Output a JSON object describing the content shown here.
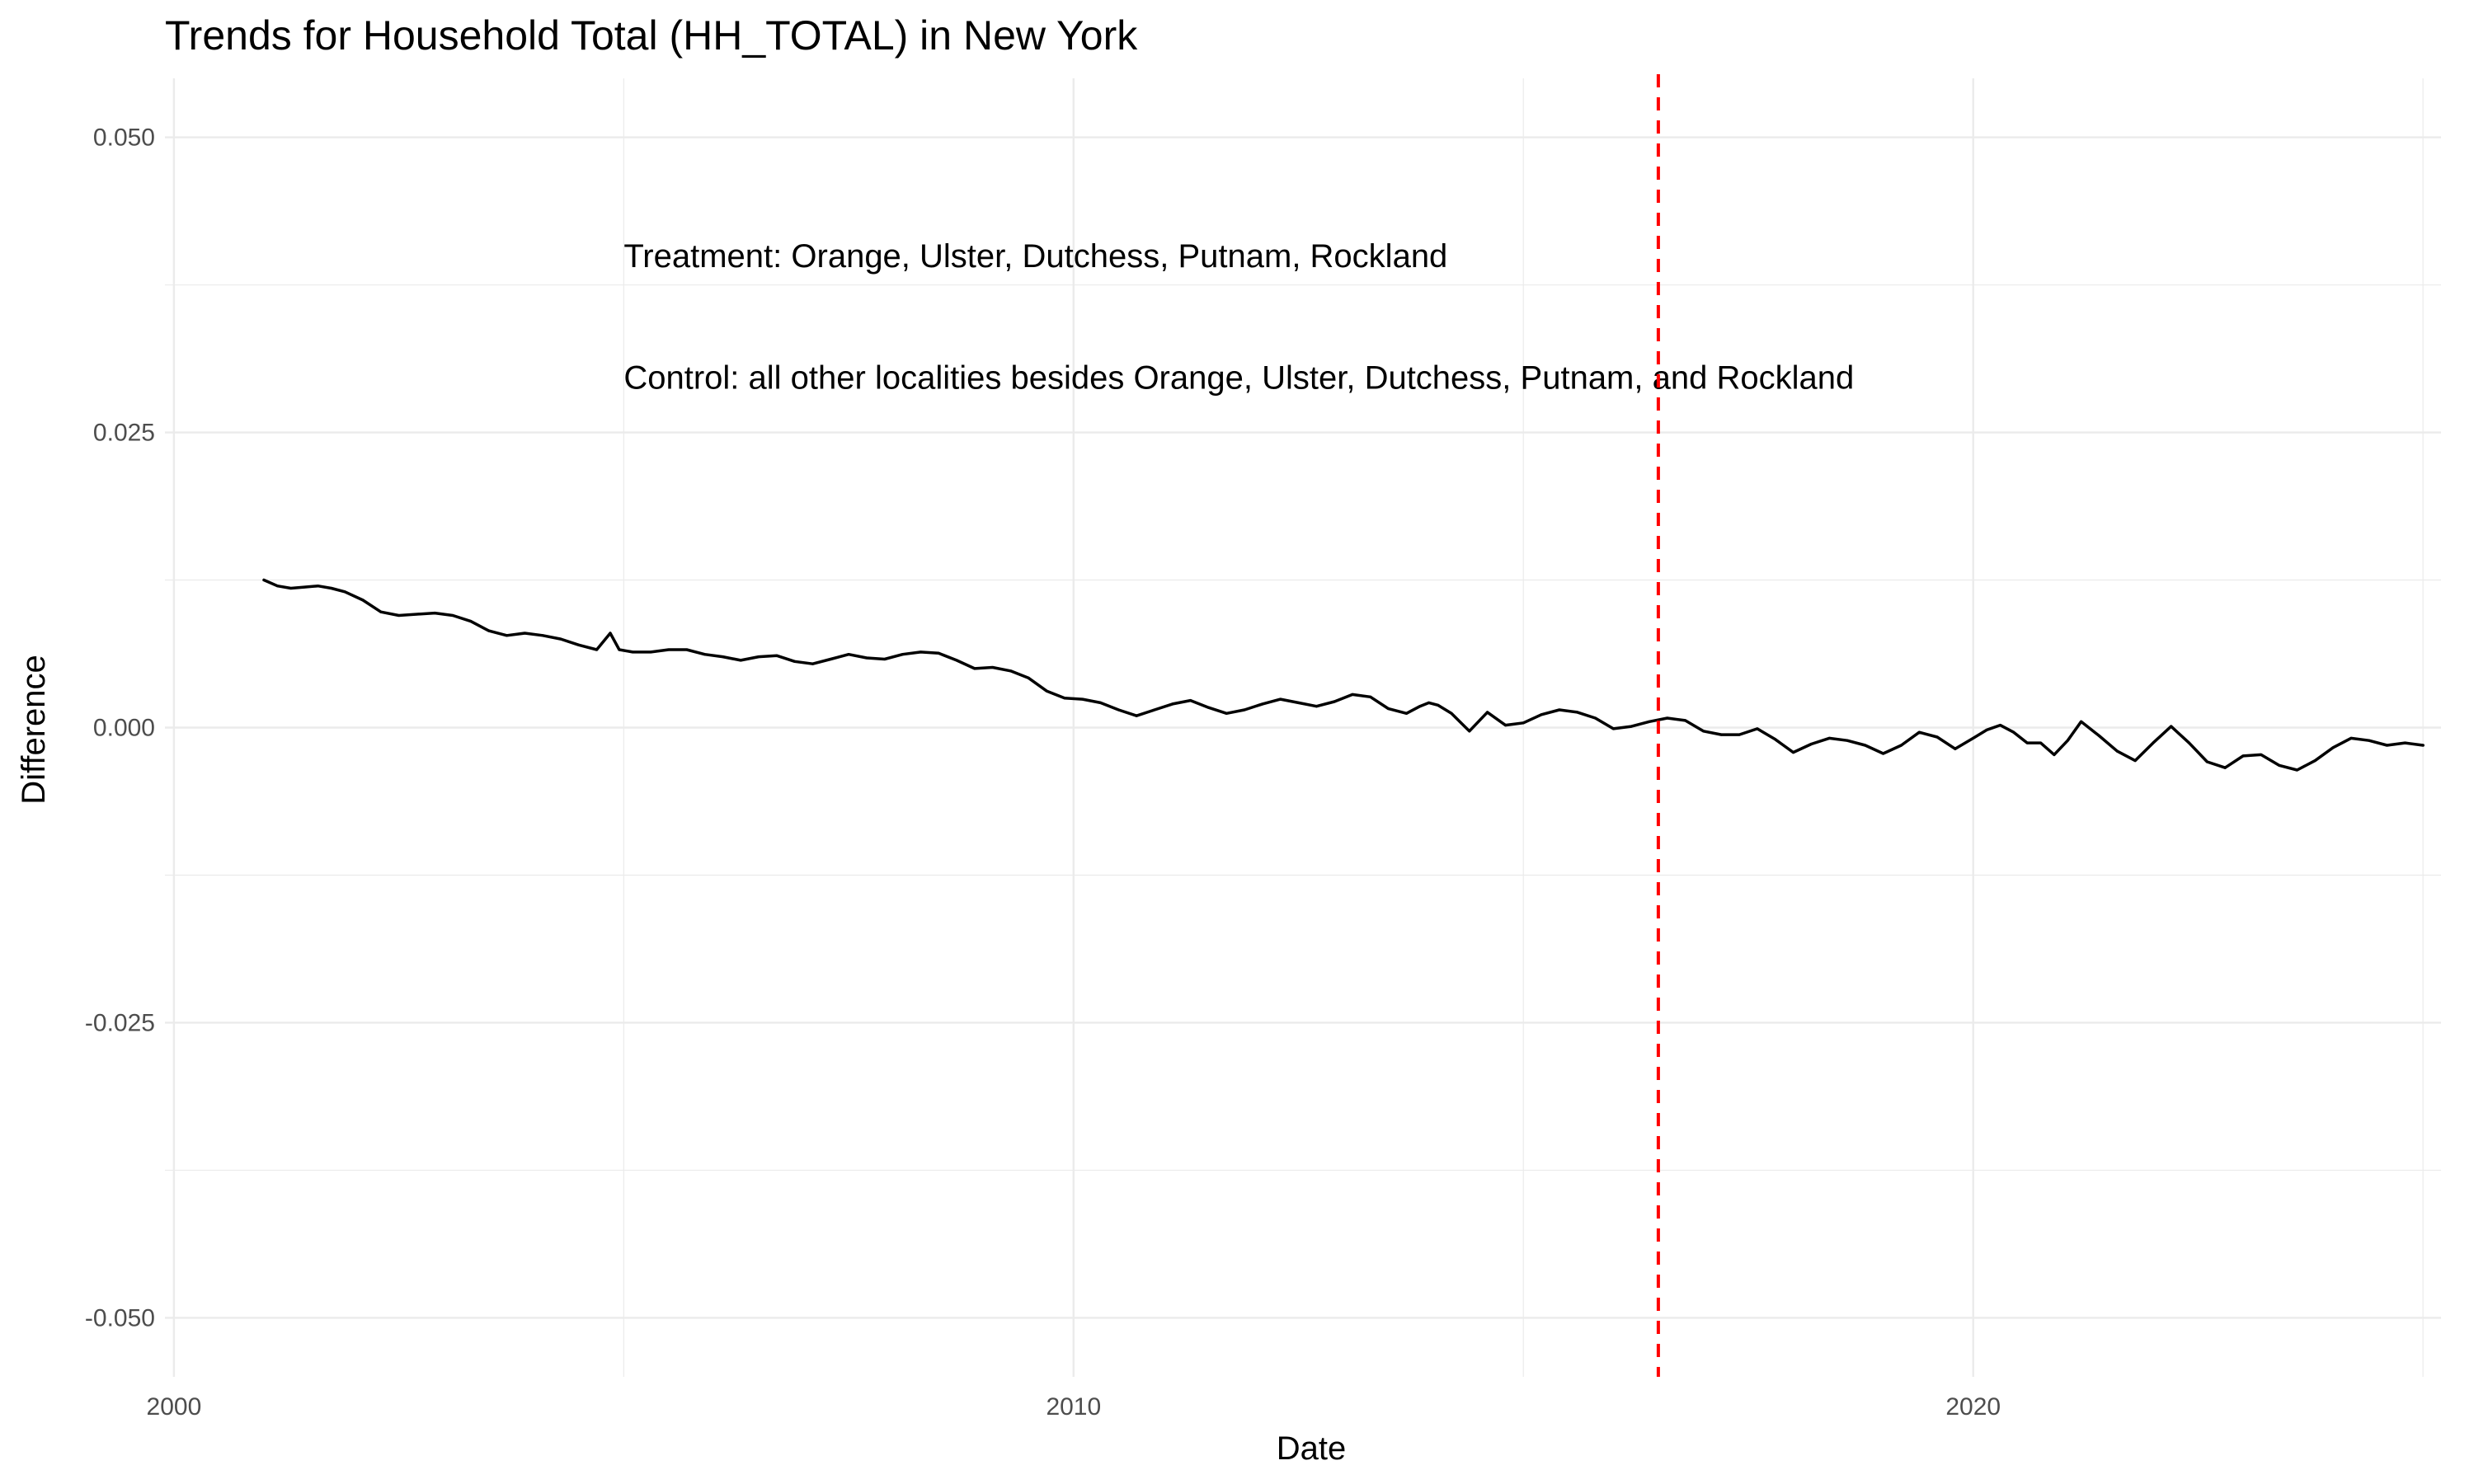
{
  "chart_data": {
    "type": "line",
    "title": "Trends for Household Total (HH_TOTAL) in New York",
    "xlabel": "Date",
    "ylabel": "Difference",
    "x_tick_labels": [
      "2000",
      "2010",
      "2020"
    ],
    "x_ticks": [
      2000,
      2010,
      2020
    ],
    "y_tick_labels": [
      "0.050",
      "0.025",
      "0.000",
      "-0.025",
      "-0.050"
    ],
    "y_ticks": [
      0.05,
      0.025,
      0.0,
      -0.025,
      -0.05
    ],
    "xlim": [
      1999.9,
      2025.2
    ],
    "ylim": [
      -0.055,
      0.055
    ],
    "grid": true,
    "legend": "none",
    "colors": {
      "line": "#000000",
      "vline": "#ff0000",
      "grid": "#ebebeb"
    },
    "reference_line": {
      "x": 2016.5,
      "style": "dashed"
    },
    "annotations": [
      {
        "text": "Treatment: Orange, Ulster, Dutchess, Putnam, Rockland",
        "x": 2005.0,
        "y": 0.04
      },
      {
        "text": "Control: all other localities besides Orange, Ulster, Dutchess, Putnam, and Rockland",
        "x": 2005.0,
        "y": 0.0297
      }
    ],
    "series": [
      {
        "x": [
          2001.0,
          2001.15,
          2001.3,
          2001.45,
          2001.6,
          2001.75,
          2001.9,
          2002.1,
          2002.3,
          2002.5,
          2002.7,
          2002.9,
          2003.1,
          2003.3,
          2003.5,
          2003.7,
          2003.9,
          2004.1,
          2004.3,
          2004.5,
          2004.7,
          2004.85,
          2004.95,
          2005.1,
          2005.3,
          2005.5,
          2005.7,
          2005.9,
          2006.1,
          2006.3,
          2006.5,
          2006.7,
          2006.9,
          2007.1,
          2007.3,
          2007.5,
          2007.7,
          2007.9,
          2008.1,
          2008.3,
          2008.5,
          2008.7,
          2008.9,
          2009.1,
          2009.3,
          2009.5,
          2009.7,
          2009.9,
          2010.1,
          2010.3,
          2010.5,
          2010.7,
          2010.9,
          2011.1,
          2011.3,
          2011.5,
          2011.7,
          2011.9,
          2012.1,
          2012.3,
          2012.5,
          2012.7,
          2012.9,
          2013.1,
          2013.3,
          2013.5,
          2013.7,
          2013.85,
          2013.95,
          2014.05,
          2014.2,
          2014.4,
          2014.6,
          2014.8,
          2015.0,
          2015.2,
          2015.4,
          2015.6,
          2015.8,
          2016.0,
          2016.2,
          2016.4,
          2016.6,
          2016.8,
          2017.0,
          2017.2,
          2017.4,
          2017.6,
          2017.8,
          2018.0,
          2018.2,
          2018.4,
          2018.6,
          2018.8,
          2019.0,
          2019.2,
          2019.4,
          2019.6,
          2019.8,
          2020.0,
          2020.15,
          2020.3,
          2020.45,
          2020.6,
          2020.75,
          2020.9,
          2021.05,
          2021.2,
          2021.4,
          2021.6,
          2021.8,
          2022.0,
          2022.2,
          2022.4,
          2022.6,
          2022.8,
          2023.0,
          2023.2,
          2023.4,
          2023.6,
          2023.8,
          2024.0,
          2024.2,
          2024.4,
          2024.6,
          2024.8,
          2025.0
        ],
        "values": [
          0.0125,
          0.012,
          0.0118,
          0.0119,
          0.012,
          0.0118,
          0.0115,
          0.0108,
          0.0098,
          0.0095,
          0.0096,
          0.0097,
          0.0095,
          0.009,
          0.0082,
          0.0078,
          0.008,
          0.0078,
          0.0075,
          0.007,
          0.0066,
          0.008,
          0.0066,
          0.0064,
          0.0064,
          0.0066,
          0.0066,
          0.0062,
          0.006,
          0.0057,
          0.006,
          0.0061,
          0.0056,
          0.0054,
          0.0058,
          0.0062,
          0.0059,
          0.0058,
          0.0062,
          0.0064,
          0.0063,
          0.0057,
          0.005,
          0.0051,
          0.0048,
          0.0042,
          0.0031,
          0.0025,
          0.0024,
          0.0021,
          0.0015,
          0.001,
          0.0015,
          0.002,
          0.0023,
          0.0017,
          0.0012,
          0.0015,
          0.002,
          0.0024,
          0.0021,
          0.0018,
          0.0022,
          0.0028,
          0.0026,
          0.0016,
          0.0012,
          0.0018,
          0.0021,
          0.0019,
          0.0012,
          -0.0003,
          0.0013,
          0.0002,
          0.0004,
          0.0011,
          0.0015,
          0.0013,
          0.0008,
          -0.0001,
          0.0001,
          0.0005,
          0.0008,
          0.0006,
          -0.0003,
          -0.0006,
          -0.0006,
          -0.0001,
          -0.001,
          -0.0021,
          -0.0014,
          -0.0009,
          -0.0011,
          -0.0015,
          -0.0022,
          -0.0015,
          -0.0004,
          -0.0008,
          -0.0018,
          -0.0009,
          -0.0002,
          0.0002,
          -0.0004,
          -0.0013,
          -0.0013,
          -0.0023,
          -0.0011,
          0.0005,
          -0.0007,
          -0.002,
          -0.0028,
          -0.0013,
          0.0001,
          -0.0013,
          -0.0029,
          -0.0034,
          -0.0024,
          -0.0023,
          -0.0032,
          -0.0036,
          -0.0028,
          -0.0017,
          -0.0009,
          -0.0011,
          -0.0015,
          -0.0013,
          -0.0015
        ]
      }
    ]
  }
}
